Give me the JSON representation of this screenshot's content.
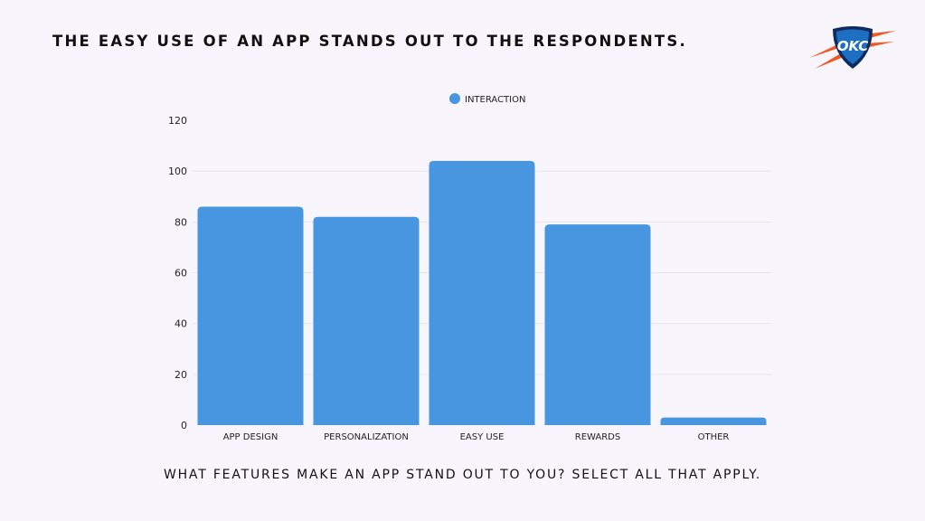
{
  "slide": {
    "title": "THE EASY USE OF AN APP STANDS OUT TO THE RESPONDENTS.",
    "question": "WHAT FEATURES MAKE AN APP STAND OUT TO YOU? SELECT ALL THAT APPLY.",
    "logo_text": "OKC",
    "logo_icon": "okc-logo-icon"
  },
  "colors": {
    "bar": "#4896df",
    "grid": "#e6e3ec",
    "background": "#f8f6fc",
    "logo_blue": "#1d6fc2",
    "logo_orange": "#ef5a24",
    "logo_navy": "#0f2a5c"
  },
  "chart_data": {
    "type": "bar",
    "categories": [
      "APP DESIGN",
      "PERSONALIZATION",
      "EASY USE",
      "REWARDS",
      "OTHER"
    ],
    "series": [
      {
        "name": "INTERACTION",
        "values": [
          86,
          82,
          104,
          79,
          3
        ]
      }
    ],
    "yticks": [
      "0",
      "20",
      "40",
      "60",
      "80",
      "100",
      "120"
    ],
    "ylim": [
      0,
      120
    ],
    "grid": true,
    "legend": "top-center"
  }
}
